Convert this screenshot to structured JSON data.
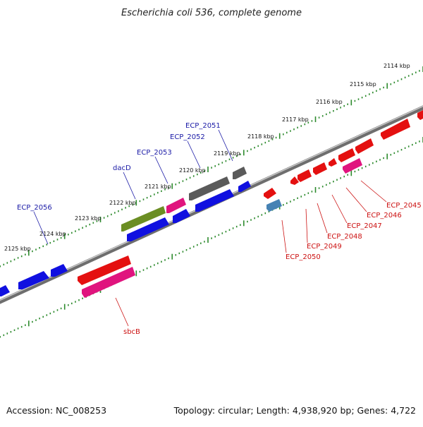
{
  "title": "Escherichia coli 536, complete genome",
  "footer": {
    "accession": "Accession: NC_008253",
    "summary": "Topology: circular; Length: 4,938,920 bp; Genes: 4,722"
  },
  "colors": {
    "backbone": "#8a8a8a",
    "tick_forward": "#2e8b2e",
    "tick_reverse": "#2e8b2e",
    "label_forward": "#1a1aa6",
    "label_reverse": "#cc1111",
    "leader_forward": "#1a1aa6",
    "leader_reverse": "#cc1111"
  },
  "kbp_labels": [
    "2114 kbp",
    "2115 kbp",
    "2116 kbp",
    "2117 kbp",
    "2118 kbp",
    "2119 kbp",
    "2120 kbp",
    "2121 kbp",
    "2122 kbp",
    "2123 kbp",
    "2124 kbp",
    "2125 kbp"
  ],
  "labels_forward": [
    "ECP_2056",
    "dacD",
    "ECP_2053",
    "ECP_2052",
    "ECP_2051"
  ],
  "labels_reverse": [
    "sbcB",
    "ECP_2050",
    "ECP_2049",
    "ECP_2048",
    "ECP_2047",
    "ECP_2046",
    "ECP_2045"
  ],
  "gene_colors": {
    "blue": "#1010e0",
    "olive": "#6b8e23",
    "pink": "#e0147e",
    "gray": "#5a5a5a",
    "red": "#e41010",
    "steel": "#4682b4"
  }
}
